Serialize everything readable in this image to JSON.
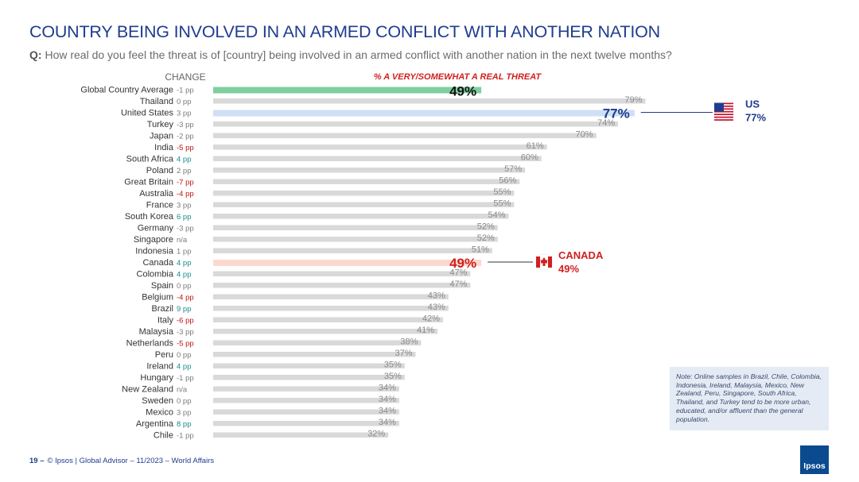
{
  "header": {
    "title": "COUNTRY BEING INVOLVED IN AN ARMED CONFLICT WITH ANOTHER NATION",
    "question_prefix": "Q:",
    "question": "How real do you feel the threat is of [country] being involved in an armed conflict with another nation in the next twelve months?"
  },
  "footer": {
    "page": "19 –",
    "source": "© Ipsos | Global Advisor – 11/2023 – World Affairs"
  },
  "note": "Note: Online samples in Brazil, Chile, Colombia, Indonesia, Ireland, Malaysia, Mexico, New Zealand, Peru, Singapore, South Africa, Thailand, and Turkey tend to be more urban, educated, and/or affluent than the general population.",
  "logo": "Ipsos",
  "colors": {
    "title": "#1f3c8f",
    "bar": "#d9d9d9",
    "global_bar": "#7fcf9f",
    "us_bar": "#cfdff5",
    "canada_bar": "#fbd9cf",
    "positive_change": "#1b8a8a",
    "negative_change": "#c0140c",
    "neutral_change": "#7a7a7a",
    "canada": "#d21f1f",
    "us": "#1f3c8f"
  },
  "chart_data": {
    "type": "bar",
    "orientation": "horizontal",
    "title": "% A VERY/SOMEWHAT A REAL THREAT",
    "change_header": "CHANGE",
    "xlim": [
      0,
      100
    ],
    "categories": [
      "Global Country Average",
      "Thailand",
      "United States",
      "Turkey",
      "Japan",
      "India",
      "South Africa",
      "Poland",
      "Great Britain",
      "Australia",
      "France",
      "South Korea",
      "Germany",
      "Singapore",
      "Indonesia",
      "Canada",
      "Colombia",
      "Spain",
      "Belgium",
      "Brazil",
      "Italy",
      "Malaysia",
      "Netherlands",
      "Peru",
      "Ireland",
      "Hungary",
      "New Zealand",
      "Sweden",
      "Mexico",
      "Argentina",
      "Chile"
    ],
    "values": [
      49,
      79,
      77,
      74,
      70,
      61,
      60,
      57,
      56,
      55,
      55,
      54,
      52,
      52,
      51,
      49,
      47,
      47,
      43,
      43,
      42,
      41,
      38,
      37,
      35,
      35,
      34,
      34,
      34,
      34,
      32
    ],
    "value_labels": [
      "49%",
      "79%",
      "77%",
      "74%",
      "70%",
      "61%",
      "60%",
      "57%",
      "56%",
      "55%",
      "55%",
      "54%",
      "52%",
      "52%",
      "51%",
      "49%",
      "47%",
      "47%",
      "43%",
      "43%",
      "42%",
      "41%",
      "38%",
      "37%",
      "35%",
      "35%",
      "34%",
      "34%",
      "34%",
      "34%",
      "32%"
    ],
    "changes": [
      "-1 pp",
      "0 pp",
      "3 pp",
      "-3 pp",
      "-2 pp",
      "-5 pp",
      "4 pp",
      "2 pp",
      "-7 pp",
      "-4 pp",
      "3 pp",
      "6 pp",
      "-3 pp",
      "n/a",
      "1 pp",
      "4 pp",
      "4 pp",
      "0 pp",
      "-4 pp",
      "9 pp",
      "-6 pp",
      "-3 pp",
      "-5 pp",
      "0 pp",
      "4 pp",
      "-1 pp",
      "n/a",
      "0 pp",
      "3 pp",
      "8 pp",
      "-1 pp"
    ],
    "change_colors": [
      "neutral",
      "neutral",
      "neutral",
      "neutral",
      "neutral",
      "negative",
      "positive",
      "neutral",
      "negative",
      "negative",
      "neutral",
      "positive",
      "neutral",
      "neutral",
      "neutral",
      "positive",
      "positive",
      "neutral",
      "negative",
      "positive",
      "negative",
      "neutral",
      "negative",
      "neutral",
      "positive",
      "neutral",
      "neutral",
      "neutral",
      "neutral",
      "positive",
      "neutral"
    ],
    "highlights": [
      {
        "index": 0,
        "kind": "global"
      },
      {
        "index": 2,
        "kind": "us",
        "label": "US",
        "value": "77%",
        "icon": "us-flag-icon"
      },
      {
        "index": 15,
        "kind": "canada",
        "label": "CANADA",
        "value": "49%",
        "icon": "canada-flag-icon"
      }
    ]
  }
}
